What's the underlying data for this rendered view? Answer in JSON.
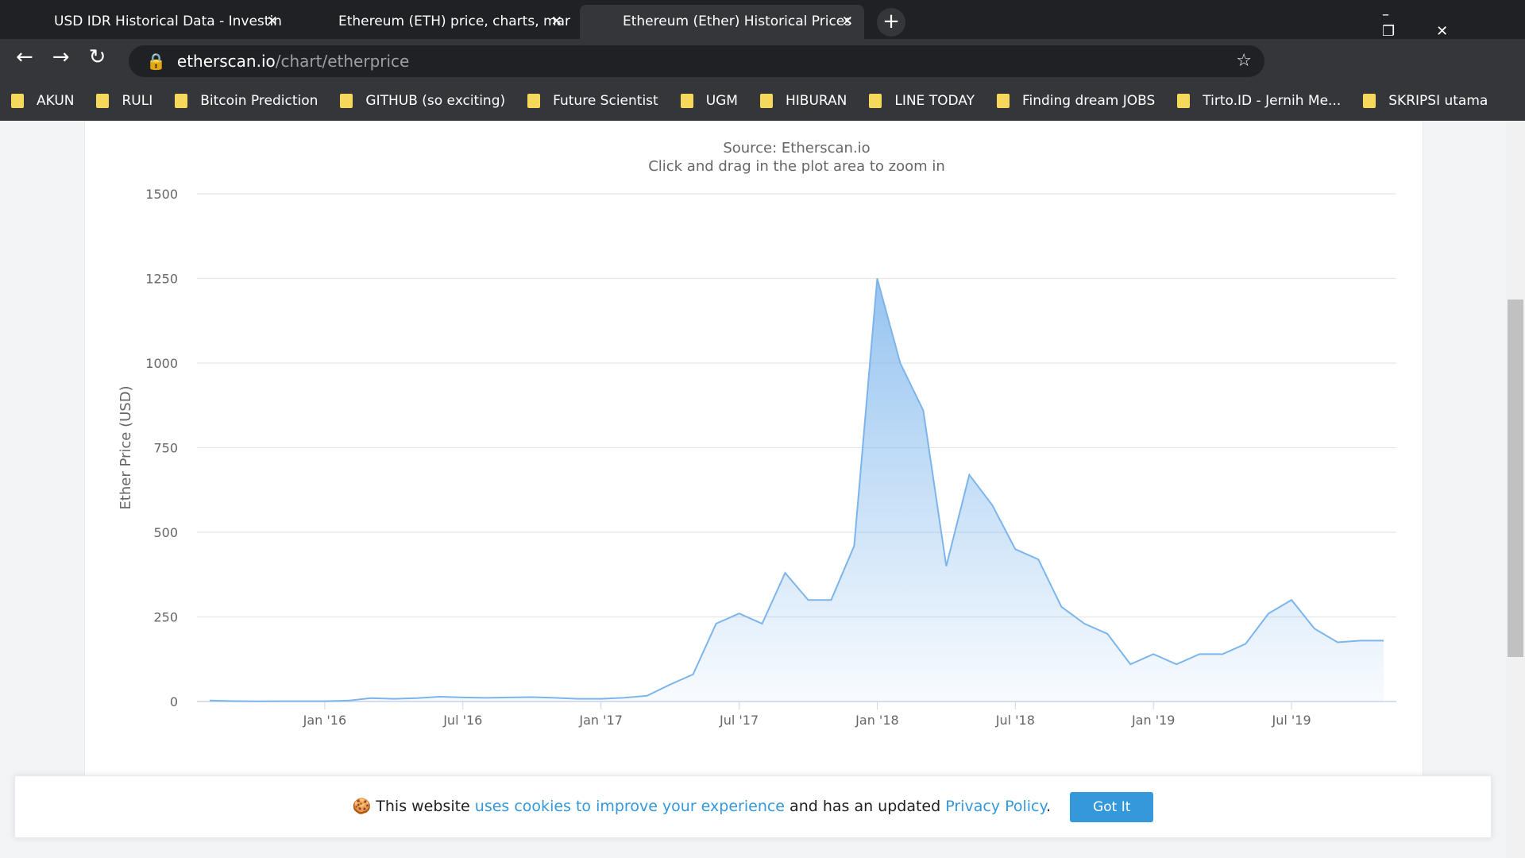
{
  "browser": {
    "tabs": [
      "USD IDR Historical Data - Investin",
      "Ethereum (ETH) price, charts, mar",
      "Ethereum (Ether) Historical Prices"
    ],
    "url_host": "etherscan.io",
    "url_path": "/chart/etherprice",
    "bookmarks": [
      "AKUN",
      "RULI",
      "Bitcoin Prediction",
      "GITHUB (so exciting)",
      "Future Scientist",
      "UGM",
      "HIBURAN",
      "LINE TODAY",
      "Finding dream JOBS",
      "Tirto.ID - Jernih Me...",
      "SKRIPSI utama"
    ]
  },
  "chart_data": {
    "type": "area",
    "subtitle": "Source: Etherscan.io",
    "note": "Click and drag in the plot area to zoom in",
    "y_label": "Ether Price (USD)",
    "x": [
      "Aug '15",
      "Sep '15",
      "Oct '15",
      "Nov '15",
      "Dec '15",
      "Jan '16",
      "Feb '16",
      "Mar '16",
      "Apr '16",
      "May '16",
      "Jun '16",
      "Jul '16",
      "Aug '16",
      "Sep '16",
      "Oct '16",
      "Nov '16",
      "Dec '16",
      "Jan '17",
      "Feb '17",
      "Mar '17",
      "Apr '17",
      "May '17",
      "Jun '17",
      "Jul '17",
      "Aug '17",
      "Sep '17",
      "Oct '17",
      "Nov '17",
      "Dec '17",
      "Jan '18",
      "Feb '18",
      "Mar '18",
      "Apr '18",
      "May '18",
      "Jun '18",
      "Jul '18",
      "Aug '18",
      "Sep '18",
      "Oct '18",
      "Nov '18",
      "Dec '18",
      "Jan '19",
      "Feb '19",
      "Mar '19",
      "Apr '19",
      "May '19",
      "Jun '19",
      "Jul '19",
      "Aug '19",
      "Sep '19",
      "Oct '19",
      "Nov '19"
    ],
    "series": [
      {
        "color": "#7cb5ec",
        "values": [
          2.8,
          1.2,
          0.7,
          1,
          0.9,
          1,
          2.5,
          10,
          8,
          10,
          14,
          12,
          11,
          12,
          13,
          11,
          8,
          8,
          11,
          17,
          50,
          80,
          230,
          260,
          230,
          380,
          300,
          300,
          460,
          1250,
          1000,
          860,
          400,
          670,
          580,
          450,
          420,
          280,
          230,
          200,
          110,
          140,
          110,
          140,
          140,
          170,
          260,
          300,
          215,
          175,
          180,
          180
        ]
      }
    ],
    "xticks": [
      "Jan '16",
      "Jul '16",
      "Jan '17",
      "Jul '17",
      "Jan '18",
      "Jul '18",
      "Jan '19",
      "Jul '19"
    ],
    "ylim": [
      0,
      1500
    ],
    "yticks": [
      0,
      250,
      500,
      750,
      1000,
      1250,
      1500
    ],
    "grid": true
  },
  "cookie": {
    "text1": "This website",
    "link1": "uses cookies to improve your experience",
    "text2": "and has an updated",
    "link2": "Privacy Policy",
    "text3": ".",
    "button": "Got It"
  }
}
